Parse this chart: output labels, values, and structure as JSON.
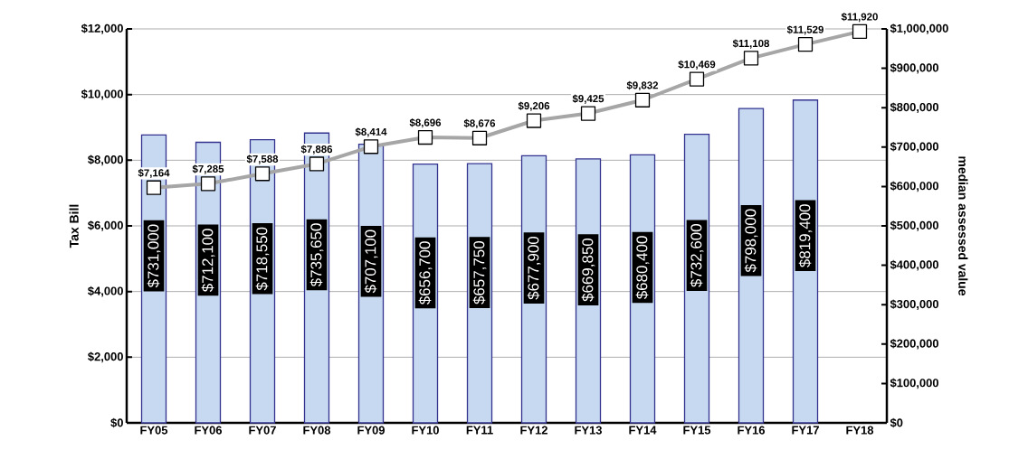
{
  "chart_data": {
    "type": "bar",
    "ylabel": "Tax Bill",
    "y2label": "median assessed value",
    "categories": [
      "FY05",
      "FY06",
      "FY07",
      "FY08",
      "FY09",
      "FY10",
      "FY11",
      "FY12",
      "FY13",
      "FY14",
      "FY15",
      "FY16",
      "FY17",
      "FY18"
    ],
    "ylim": [
      0,
      12000
    ],
    "yticks": [
      {
        "value": 0,
        "label": "$0"
      },
      {
        "value": 2000,
        "label": "$2,000"
      },
      {
        "value": 4000,
        "label": "$4,000"
      },
      {
        "value": 6000,
        "label": "$6,000"
      },
      {
        "value": 8000,
        "label": "$8,000"
      },
      {
        "value": 10000,
        "label": "$10,000"
      },
      {
        "value": 12000,
        "label": "$12,000"
      }
    ],
    "y2lim": [
      0,
      1000000
    ],
    "y2ticks": [
      {
        "value": 0,
        "label": "$0"
      },
      {
        "value": 100000,
        "label": "$100,000"
      },
      {
        "value": 200000,
        "label": "$200,000"
      },
      {
        "value": 300000,
        "label": "$300,000"
      },
      {
        "value": 400000,
        "label": "$400,000"
      },
      {
        "value": 500000,
        "label": "$500,000"
      },
      {
        "value": 600000,
        "label": "$600,000"
      },
      {
        "value": 700000,
        "label": "$700,000"
      },
      {
        "value": 800000,
        "label": "$800,000"
      },
      {
        "value": 900000,
        "label": "$900,000"
      },
      {
        "value": 1000000,
        "label": "$1,000,000"
      }
    ],
    "grid": "y",
    "series": [
      {
        "axis": "y2",
        "color": "#c6d9f0",
        "values": [
          731000,
          712100,
          718550,
          735650,
          707100,
          656700,
          657750,
          677900,
          669850,
          680400,
          732600,
          798000,
          819400,
          null
        ],
        "value_labels": [
          "$731,000",
          "$712,100",
          "$718,550",
          "$735,650",
          "$707,100",
          "$656,700",
          "$657,750",
          "$677,900",
          "$669,850",
          "$680,400",
          "$732,600",
          "$798,000",
          "$819,400",
          null
        ]
      },
      {
        "type": "line",
        "axis": "y",
        "color": "#a6a6a6",
        "marker": "square",
        "values": [
          7164,
          7285,
          7588,
          7886,
          8414,
          8696,
          8676,
          9206,
          9425,
          9832,
          10469,
          11108,
          11529,
          11920
        ],
        "value_labels": [
          "$7,164",
          "$7,285",
          "$7,588",
          "$7,886",
          "$8,414",
          "$8,696",
          "$8,676",
          "$9,206",
          "$9,425",
          "$9,832",
          "$10,469",
          "$11,108",
          "$11,529",
          "$11,920"
        ]
      }
    ]
  }
}
